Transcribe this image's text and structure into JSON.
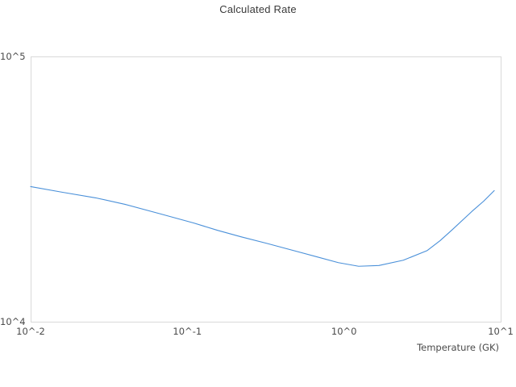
{
  "chart_data": {
    "type": "line",
    "title": "Calculated Rate",
    "xlabel": "Temperature (GK)",
    "ylabel": "",
    "xscale": "log",
    "yscale": "log",
    "xlim": [
      0.01,
      10
    ],
    "ylim": [
      10000,
      100000
    ],
    "grid": false,
    "legend": "none",
    "line_color": "#4a90d9",
    "axis_border_color": "#d9d9d9",
    "xticks": [
      {
        "value": 0.01,
        "label": "10^-2"
      },
      {
        "value": 0.1,
        "label": "10^-1"
      },
      {
        "value": 1,
        "label": "10^0"
      },
      {
        "value": 10,
        "label": "10^1"
      }
    ],
    "yticks": [
      {
        "value": 10000,
        "label": "10^4"
      },
      {
        "value": 100000,
        "label": "10^5"
      }
    ],
    "series": [
      {
        "name": "calculated-rate",
        "x": [
          0.01,
          0.016,
          0.026,
          0.04,
          0.068,
          0.11,
          0.156,
          0.22,
          0.32,
          0.65,
          0.92,
          1.24,
          1.67,
          2.39,
          3.4,
          4.1,
          4.86,
          6.53,
          7.8,
          9.1
        ],
        "y": [
          32300,
          30750,
          29300,
          27700,
          25450,
          23550,
          22100,
          20900,
          19750,
          17650,
          16700,
          16180,
          16290,
          17050,
          18550,
          20200,
          22100,
          26000,
          28500,
          31200
        ]
      }
    ]
  }
}
